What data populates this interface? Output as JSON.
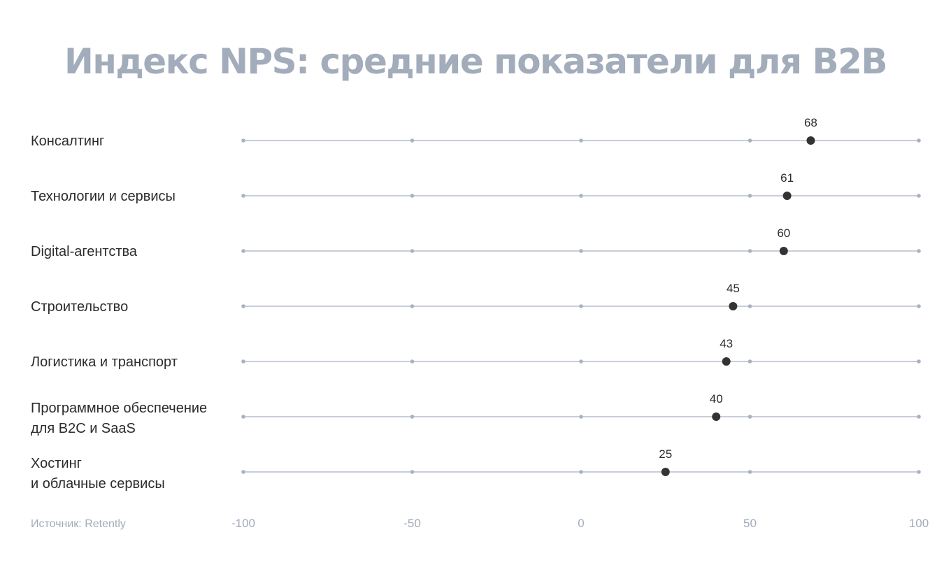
{
  "chart_data": {
    "type": "scatter",
    "title": "Индекс NPS: средние показатели для B2B",
    "categories": [
      [
        "Консалтинг"
      ],
      [
        "Технологии и сервисы"
      ],
      [
        "Digital-агентства"
      ],
      [
        "Строительство"
      ],
      [
        "Логистика и транспорт"
      ],
      [
        "Программное обеспечение",
        "для B2C и SaaS"
      ],
      [
        "Хостинг",
        "и облачные сервисы"
      ]
    ],
    "values": [
      68,
      61,
      60,
      45,
      43,
      40,
      25
    ],
    "xlim": [
      -100,
      100
    ],
    "xticks": [
      -100,
      -50,
      0,
      50,
      100
    ],
    "xtick_labels": [
      "-100",
      "-50",
      "0",
      "50",
      "100"
    ],
    "source": "Источник: Retently",
    "grid": false,
    "colors": {
      "title": "#a2acbb",
      "track": "#c8ced8",
      "tick_dot": "#a9b2c2",
      "value_dot": "#333333",
      "label": "#2b2b2b",
      "muted": "#a2acbb"
    }
  }
}
